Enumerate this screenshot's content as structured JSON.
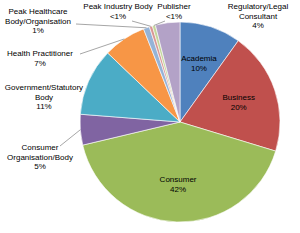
{
  "chart_data": {
    "type": "pie",
    "categories": [
      "Academia",
      "Business",
      "Consumer",
      "Consumer Organisation/Body",
      "Government/Statutory Body",
      "Health Practitioner",
      "Peak Healthcare Body/Organisation",
      "Peak Industry Body",
      "Publisher",
      "Regulatory/Legal Consultant"
    ],
    "values": [
      10,
      20,
      42,
      5,
      11,
      7,
      1,
      0.5,
      0.5,
      4
    ],
    "value_labels": [
      "10%",
      "20%",
      "42%",
      "5%",
      "11%",
      "7%",
      "1%",
      "<1%",
      "<1%",
      "4%"
    ],
    "colors": [
      "#4f81bd",
      "#c0504d",
      "#9bbb59",
      "#8064a2",
      "#4bacc6",
      "#f79646",
      "#95b3d7",
      "#d99694",
      "#c3d69b",
      "#b3a2c7"
    ],
    "data_labels": true
  }
}
